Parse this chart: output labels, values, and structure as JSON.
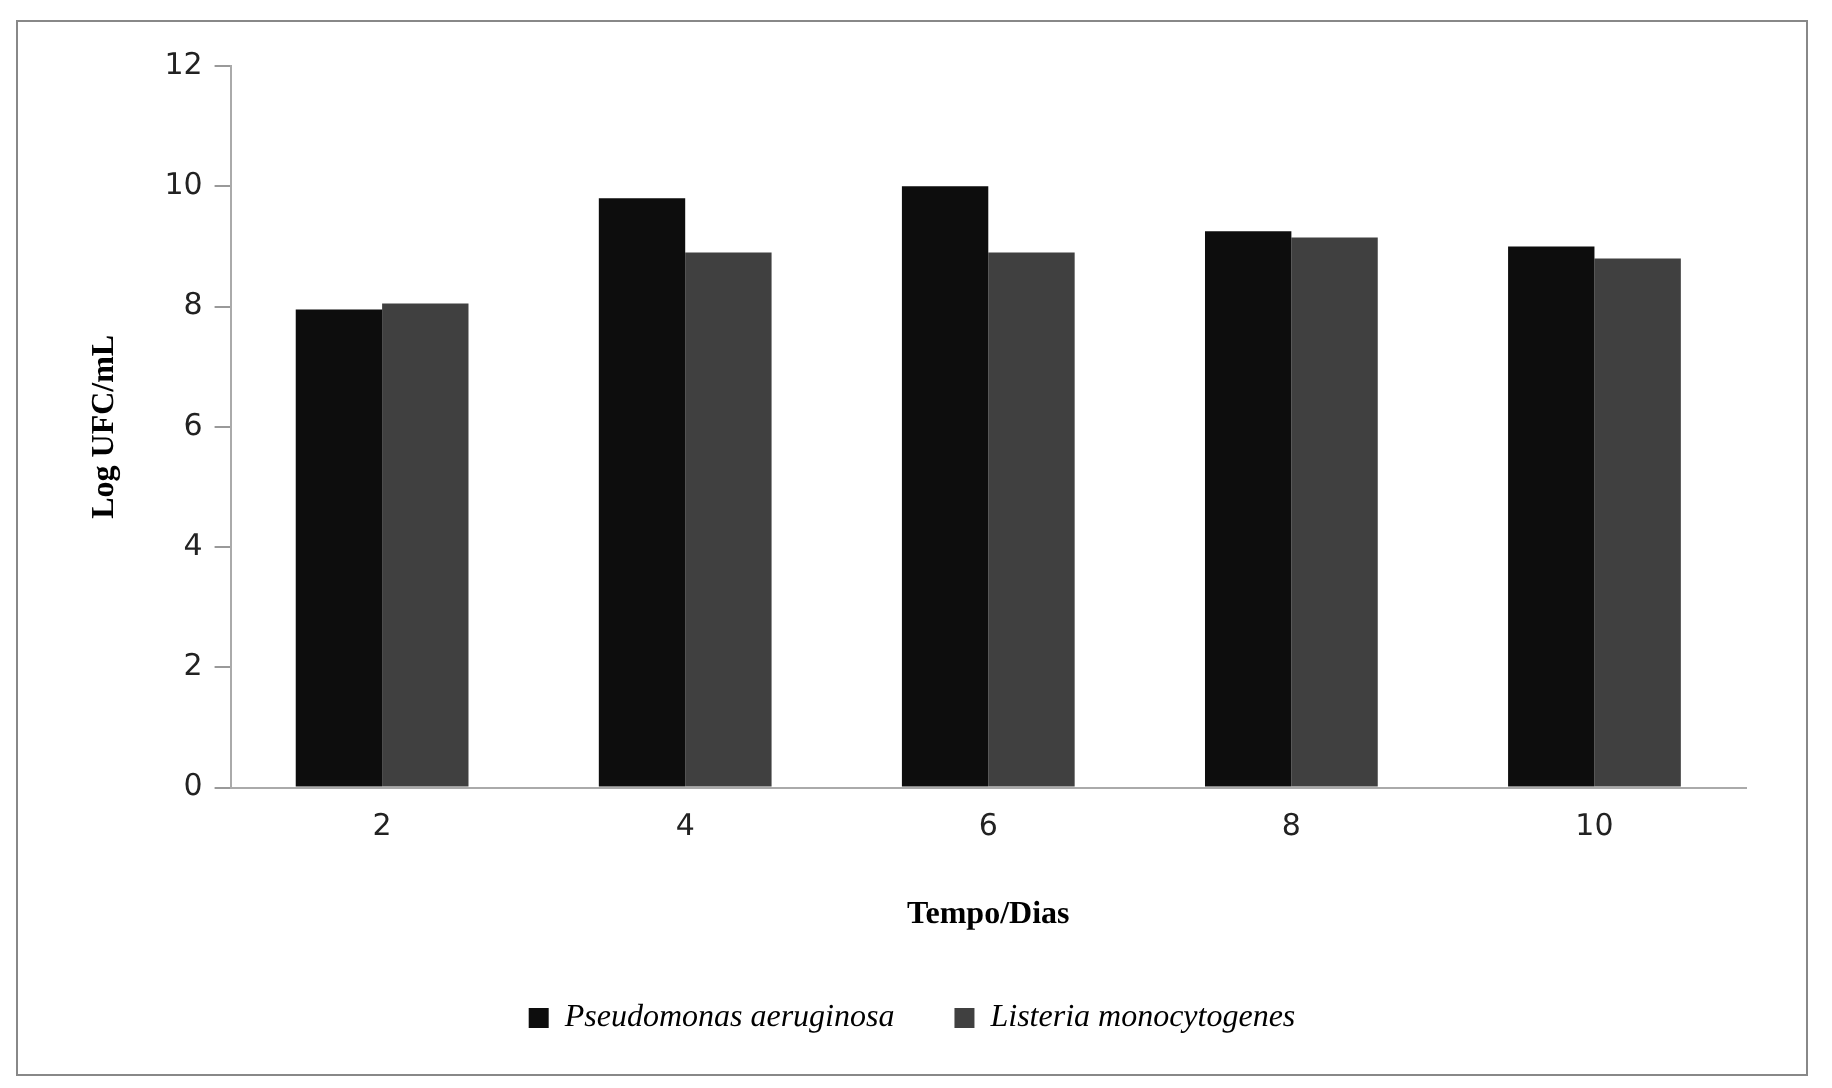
{
  "chart_data": {
    "type": "bar",
    "xlabel": "Tempo/Dias",
    "ylabel": "Log UFC/mL",
    "categories": [
      "2",
      "4",
      "6",
      "8",
      "10"
    ],
    "series": [
      {
        "name": "Pseudomonas aeruginosa",
        "color": "#0d0d0d",
        "values": [
          7.95,
          9.8,
          10.0,
          9.25,
          9.0
        ]
      },
      {
        "name": "Listeria monocytogenes",
        "color": "#404040",
        "values": [
          8.05,
          8.9,
          8.9,
          9.15,
          8.8
        ]
      }
    ],
    "ylim": [
      0,
      12
    ],
    "yticks": [
      0,
      2,
      4,
      6,
      8,
      10,
      12
    ],
    "grid": false,
    "legend": "bottom"
  }
}
